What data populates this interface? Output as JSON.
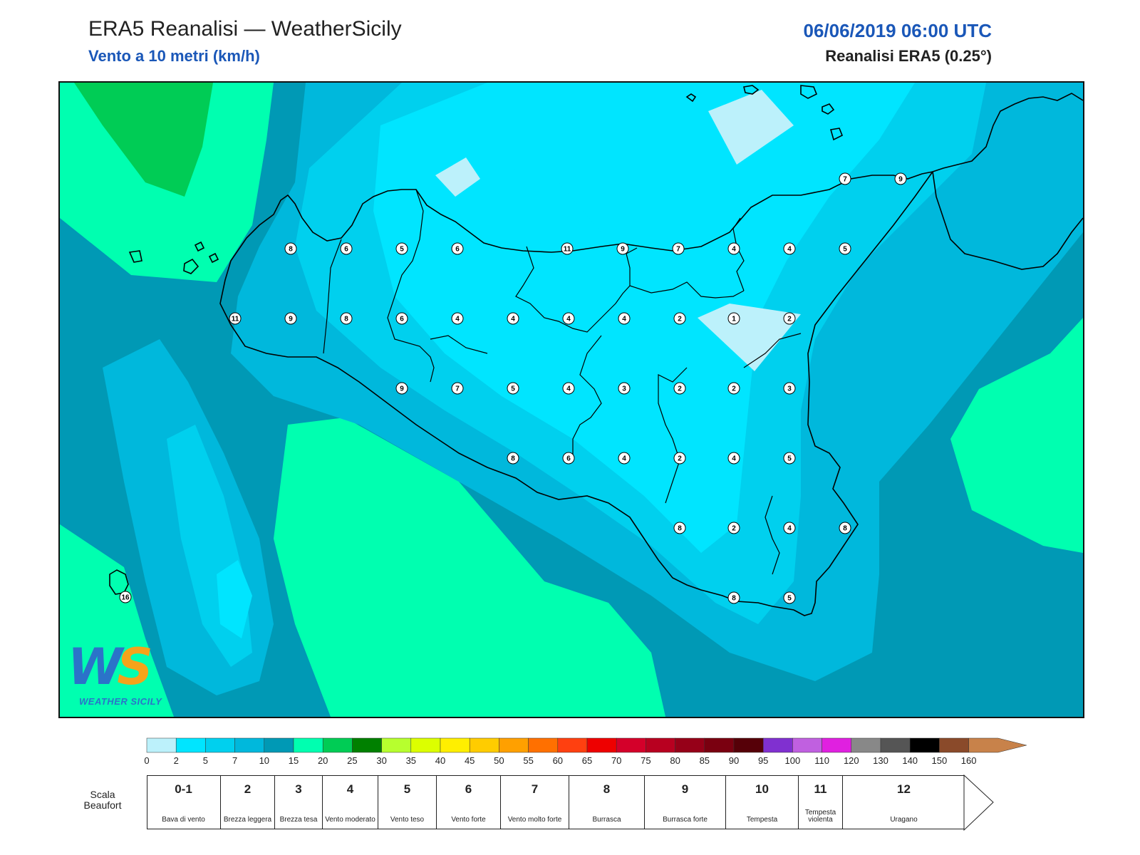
{
  "header": {
    "title": "ERA5 Reanalisi — WeatherSicily",
    "subtitle": "Vento a 10 metri (km/h)",
    "date": "06/06/2019 06:00 UTC",
    "product": "Reanalisi ERA5 (0.25°)"
  },
  "map": {
    "colors": {
      "level_0_2": "#bcf1fb",
      "level_2_5": "#00e5ff",
      "level_5_7": "#00d0ee",
      "level_7_10": "#00b8dc",
      "level_10_15": "#0099b5",
      "level_15_20": "#00ffb0",
      "level_20_25": "#00cc55",
      "coastline": "#000000"
    },
    "wind_labels": [
      "7",
      "9",
      "8",
      "6",
      "5",
      "6",
      "11",
      "9",
      "7",
      "4",
      "4",
      "5",
      "11",
      "9",
      "8",
      "6",
      "4",
      "4",
      "4",
      "4",
      "2",
      "1",
      "2",
      "9",
      "7",
      "5",
      "4",
      "3",
      "2",
      "2",
      "3",
      "8",
      "6",
      "4",
      "2",
      "4",
      "5",
      "8",
      "2",
      "4",
      "8",
      "8",
      "5",
      "16"
    ]
  },
  "logo": {
    "letters_w": "W",
    "letters_s": "S",
    "text": "WEATHER SICILY"
  },
  "colorbar": {
    "ticks": [
      "0",
      "2",
      "5",
      "7",
      "10",
      "15",
      "20",
      "25",
      "30",
      "35",
      "40",
      "45",
      "50",
      "55",
      "60",
      "65",
      "70",
      "75",
      "80",
      "85",
      "90",
      "95",
      "100",
      "110",
      "120",
      "130",
      "140",
      "150",
      "160"
    ],
    "colors": [
      "#bcf1fb",
      "#00e5ff",
      "#00d0ee",
      "#00b8dc",
      "#0099b5",
      "#00ffb0",
      "#00cc55",
      "#008000",
      "#b7ff2e",
      "#dcff00",
      "#ffef00",
      "#ffcc00",
      "#ffa000",
      "#ff7000",
      "#ff4010",
      "#ee0000",
      "#d4002a",
      "#b80020",
      "#960018",
      "#7a0010",
      "#560008",
      "#8030d0",
      "#c060e0",
      "#e020e0",
      "#888888",
      "#555555",
      "#000000",
      "#8a4a2a",
      "#c8824a"
    ]
  },
  "beaufort": {
    "title": "Scala Beaufort",
    "scale": [
      {
        "num": "0-1",
        "desc": "Bava di vento"
      },
      {
        "num": "2",
        "desc": "Brezza leggera"
      },
      {
        "num": "3",
        "desc": "Brezza tesa"
      },
      {
        "num": "4",
        "desc": "Vento moderato"
      },
      {
        "num": "5",
        "desc": "Vento teso"
      },
      {
        "num": "6",
        "desc": "Vento forte"
      },
      {
        "num": "7",
        "desc": "Vento molto forte"
      },
      {
        "num": "8",
        "desc": "Burrasca"
      },
      {
        "num": "9",
        "desc": "Burrasca forte"
      },
      {
        "num": "10",
        "desc": "Tempesta"
      },
      {
        "num": "11",
        "desc": "Tempesta violenta"
      },
      {
        "num": "12",
        "desc": "Uragano"
      }
    ]
  }
}
